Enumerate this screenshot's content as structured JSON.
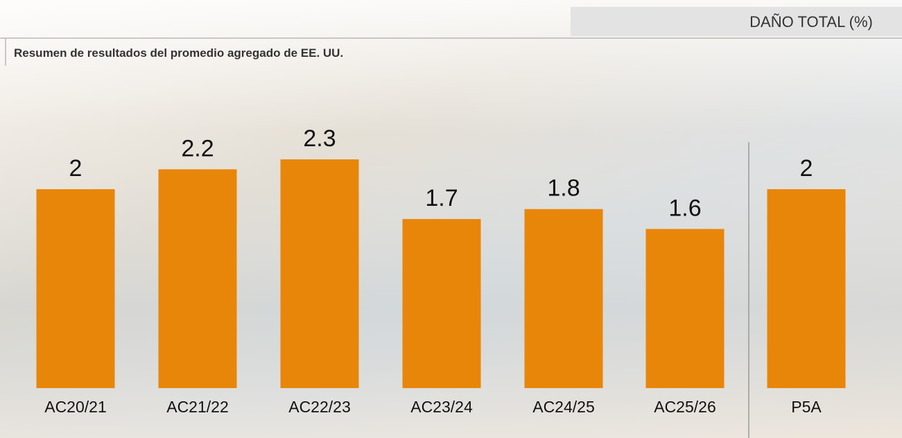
{
  "chart_data": {
    "type": "bar",
    "header": "DAÑO TOTAL (%)",
    "title": "Resumen de resultados del promedio agregado de EE. UU.",
    "categories": [
      "AC20/21",
      "AC21/22",
      "AC22/23",
      "AC23/24",
      "AC24/25",
      "AC25/26",
      "P5A"
    ],
    "values": [
      2,
      2.2,
      2.3,
      1.7,
      1.8,
      1.6,
      2
    ],
    "color": "#e8860a"
  }
}
